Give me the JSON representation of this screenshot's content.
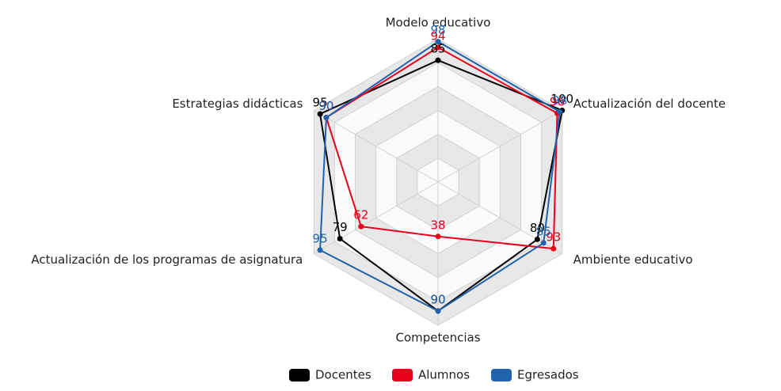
{
  "chart_data": {
    "type": "radar",
    "categories": [
      "Modelo educativo",
      "Actualización del docente",
      "Ambiente educativo",
      "Competencias",
      "Actualización de los programas de asignatura",
      "Estrategias didácticas"
    ],
    "rlim": [
      0,
      100
    ],
    "series": [
      {
        "name": "Docentes",
        "color": "#000000",
        "values": [
          85,
          100,
          80,
          90,
          79,
          95
        ]
      },
      {
        "name": "Alumnos",
        "color": "#e8001c",
        "values": [
          94,
          96,
          93,
          38,
          62,
          90
        ]
      },
      {
        "name": "Egresados",
        "color": "#1f63ad",
        "values": [
          98,
          98,
          85,
          90,
          95,
          90
        ]
      }
    ],
    "legend": "bottom"
  }
}
